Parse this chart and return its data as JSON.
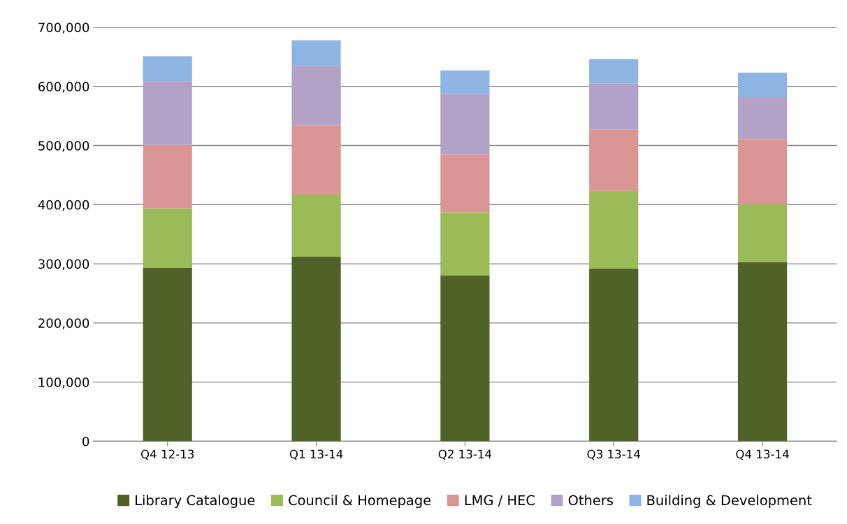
{
  "chart_data": {
    "type": "bar",
    "stacked": true,
    "categories": [
      "Q4 12-13",
      "Q1 13-14",
      "Q2 13-14",
      "Q3 13-14",
      "Q4 13-14"
    ],
    "series": [
      {
        "name": "Library Catalogue",
        "color": "#4f6228",
        "values": [
          293000,
          312000,
          280000,
          292000,
          303000
        ]
      },
      {
        "name": "Council & Homepage",
        "color": "#9bbb59",
        "values": [
          101000,
          105000,
          107000,
          131000,
          98000
        ]
      },
      {
        "name": "LMG / HEC",
        "color": "#d99694",
        "values": [
          107000,
          117000,
          98000,
          104000,
          110000
        ]
      },
      {
        "name": "Others",
        "color": "#b3a2c7",
        "values": [
          108000,
          101000,
          102000,
          78000,
          71000
        ]
      },
      {
        "name": "Building & Development",
        "color": "#8eb4e3",
        "values": [
          42000,
          43000,
          40000,
          41000,
          41000
        ]
      }
    ],
    "ylim": [
      0,
      700000
    ],
    "yticks": [
      {
        "value": 0,
        "label": "0"
      },
      {
        "value": 100000,
        "label": "100,000"
      },
      {
        "value": 200000,
        "label": "200,000"
      },
      {
        "value": 300000,
        "label": "300,000"
      },
      {
        "value": 400000,
        "label": "400,000"
      },
      {
        "value": 500000,
        "label": "500,000"
      },
      {
        "value": 600000,
        "label": "600,000"
      },
      {
        "value": 700000,
        "label": "700,000"
      }
    ],
    "grid": "y",
    "legend": "bottom"
  }
}
